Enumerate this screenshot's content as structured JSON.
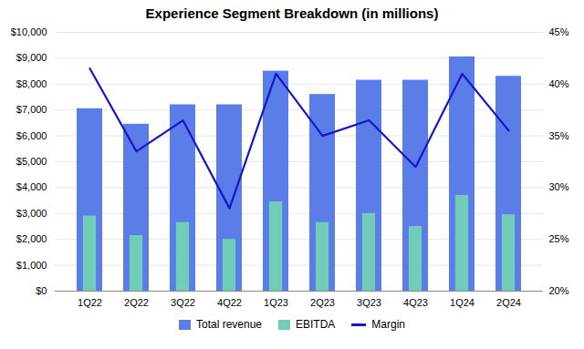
{
  "chart_data": {
    "type": "bar",
    "title": "Experience Segment Breakdown (in millions)",
    "categories": [
      "1Q22",
      "2Q22",
      "3Q22",
      "4Q22",
      "1Q23",
      "2Q23",
      "3Q23",
      "4Q23",
      "1Q24",
      "2Q24"
    ],
    "series": [
      {
        "name": "Total revenue",
        "type": "bar",
        "color": "#5b7de8",
        "values": [
          7050,
          6450,
          7200,
          7200,
          8500,
          7600,
          8150,
          8150,
          9050,
          8300
        ]
      },
      {
        "name": "EBITDA",
        "type": "bar",
        "color": "#72cdb8",
        "values": [
          2900,
          2150,
          2650,
          2000,
          3450,
          2650,
          3000,
          2500,
          3700,
          2950
        ]
      },
      {
        "name": "Margin",
        "type": "line",
        "axis": "y2",
        "color": "#1515cc",
        "values": [
          41.5,
          33.5,
          36.5,
          28.0,
          41.0,
          35.0,
          36.5,
          32.0,
          41.0,
          35.5
        ]
      }
    ],
    "ylim": [
      0,
      10000
    ],
    "yticks": [
      {
        "value": 0,
        "label": "$0"
      },
      {
        "value": 1000,
        "label": "$1,000"
      },
      {
        "value": 2000,
        "label": "$2,000"
      },
      {
        "value": 3000,
        "label": "$3,000"
      },
      {
        "value": 4000,
        "label": "$4,000"
      },
      {
        "value": 5000,
        "label": "$5,000"
      },
      {
        "value": 6000,
        "label": "$6,000"
      },
      {
        "value": 7000,
        "label": "$7,000"
      },
      {
        "value": 8000,
        "label": "$8,000"
      },
      {
        "value": 9000,
        "label": "$9,000"
      },
      {
        "value": 10000,
        "label": "$10,000"
      }
    ],
    "y2lim": [
      20,
      45
    ],
    "y2ticks": [
      {
        "value": 20,
        "label": "20%"
      },
      {
        "value": 25,
        "label": "25%"
      },
      {
        "value": 30,
        "label": "30%"
      },
      {
        "value": 35,
        "label": "35%"
      },
      {
        "value": 40,
        "label": "40%"
      },
      {
        "value": 45,
        "label": "45%"
      }
    ],
    "grid": true,
    "legend": "bottom",
    "stacked": false
  }
}
